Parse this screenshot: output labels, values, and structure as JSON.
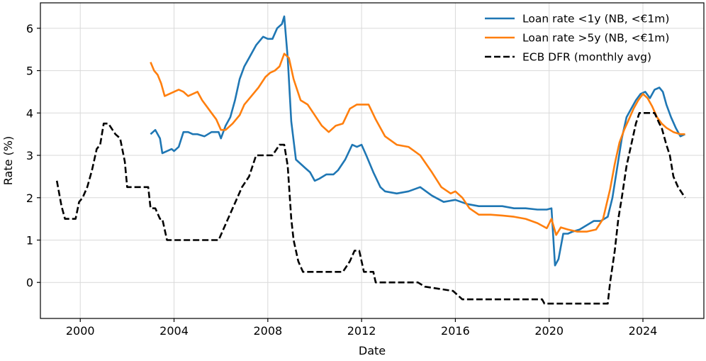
{
  "chart_data": {
    "type": "line",
    "title": "",
    "xlabel": "Date",
    "ylabel": "Rate (%)",
    "xlim": [
      1998.3,
      2026.6
    ],
    "ylim": [
      -0.85,
      6.6
    ],
    "x_ticks": [
      2000,
      2004,
      2008,
      2012,
      2016,
      2020,
      2024
    ],
    "x_tick_labels": [
      "2000",
      "2004",
      "2008",
      "2012",
      "2016",
      "2020",
      "2024"
    ],
    "y_ticks": [
      0,
      1,
      2,
      3,
      4,
      5,
      6
    ],
    "y_tick_labels": [
      "0",
      "1",
      "2",
      "3",
      "4",
      "5",
      "6"
    ],
    "grid": true,
    "legend_position": "upper right",
    "series": [
      {
        "name": "Loan rate <1y (NB, <€1m)",
        "color": "#1f77b4",
        "style": "solid",
        "x": [
          2003.0,
          2003.2,
          2003.4,
          2003.5,
          2003.7,
          2003.9,
          2004.0,
          2004.2,
          2004.4,
          2004.6,
          2004.8,
          2005.0,
          2005.3,
          2005.6,
          2005.9,
          2006.0,
          2006.2,
          2006.4,
          2006.6,
          2006.8,
          2007.0,
          2007.2,
          2007.5,
          2007.8,
          2008.0,
          2008.2,
          2008.4,
          2008.6,
          2008.7,
          2008.85,
          2009.0,
          2009.2,
          2009.4,
          2009.6,
          2009.8,
          2010.0,
          2010.2,
          2010.5,
          2010.8,
          2011.0,
          2011.3,
          2011.6,
          2011.8,
          2012.0,
          2012.2,
          2012.5,
          2012.8,
          2013.0,
          2013.5,
          2014.0,
          2014.5,
          2015.0,
          2015.5,
          2016.0,
          2016.5,
          2017.0,
          2017.5,
          2018.0,
          2018.5,
          2019.0,
          2019.5,
          2019.9,
          2020.1,
          2020.25,
          2020.4,
          2020.6,
          2020.8,
          2021.0,
          2021.3,
          2021.6,
          2021.9,
          2022.2,
          2022.5,
          2022.7,
          2022.9,
          2023.1,
          2023.3,
          2023.5,
          2023.7,
          2023.9,
          2024.1,
          2024.3,
          2024.5,
          2024.7,
          2024.85,
          2025.0,
          2025.2,
          2025.4,
          2025.6,
          2025.8
        ],
        "values": [
          3.5,
          3.6,
          3.4,
          3.05,
          3.1,
          3.15,
          3.1,
          3.2,
          3.55,
          3.55,
          3.5,
          3.5,
          3.45,
          3.55,
          3.55,
          3.4,
          3.7,
          3.9,
          4.3,
          4.8,
          5.1,
          5.3,
          5.6,
          5.8,
          5.75,
          5.75,
          6.0,
          6.1,
          6.28,
          5.3,
          3.8,
          2.9,
          2.8,
          2.7,
          2.6,
          2.4,
          2.45,
          2.55,
          2.55,
          2.65,
          2.9,
          3.25,
          3.2,
          3.25,
          3.0,
          2.6,
          2.25,
          2.15,
          2.1,
          2.15,
          2.25,
          2.05,
          1.9,
          1.95,
          1.85,
          1.8,
          1.8,
          1.8,
          1.75,
          1.75,
          1.72,
          1.72,
          1.75,
          0.4,
          0.55,
          1.15,
          1.15,
          1.2,
          1.25,
          1.35,
          1.45,
          1.45,
          1.55,
          2.0,
          2.7,
          3.4,
          3.9,
          4.1,
          4.3,
          4.45,
          4.5,
          4.35,
          4.55,
          4.6,
          4.5,
          4.2,
          3.9,
          3.65,
          3.45,
          3.5
        ]
      },
      {
        "name": "Loan rate >5y (NB, <€1m)",
        "color": "#ff7f0e",
        "style": "solid",
        "x": [
          2003.0,
          2003.15,
          2003.3,
          2003.45,
          2003.6,
          2003.8,
          2004.0,
          2004.2,
          2004.4,
          2004.6,
          2004.8,
          2005.0,
          2005.2,
          2005.4,
          2005.6,
          2005.8,
          2006.0,
          2006.2,
          2006.5,
          2006.8,
          2007.0,
          2007.3,
          2007.6,
          2007.9,
          2008.1,
          2008.3,
          2008.5,
          2008.7,
          2008.9,
          2009.1,
          2009.4,
          2009.7,
          2010.0,
          2010.3,
          2010.6,
          2010.9,
          2011.2,
          2011.5,
          2011.8,
          2012.0,
          2012.3,
          2012.6,
          2013.0,
          2013.5,
          2014.0,
          2014.5,
          2015.0,
          2015.4,
          2015.8,
          2016.0,
          2016.3,
          2016.6,
          2017.0,
          2017.5,
          2018.0,
          2018.5,
          2019.0,
          2019.5,
          2019.9,
          2020.1,
          2020.3,
          2020.5,
          2020.8,
          2021.2,
          2021.6,
          2022.0,
          2022.3,
          2022.6,
          2022.8,
          2023.0,
          2023.2,
          2023.4,
          2023.6,
          2023.8,
          2024.0,
          2024.2,
          2024.4,
          2024.6,
          2024.8,
          2025.0,
          2025.3,
          2025.6,
          2025.8
        ],
        "values": [
          5.2,
          5.0,
          4.9,
          4.7,
          4.4,
          4.45,
          4.5,
          4.55,
          4.5,
          4.4,
          4.45,
          4.5,
          4.3,
          4.15,
          4.0,
          3.85,
          3.6,
          3.6,
          3.75,
          3.95,
          4.2,
          4.4,
          4.6,
          4.85,
          4.95,
          5.0,
          5.1,
          5.4,
          5.3,
          4.8,
          4.3,
          4.2,
          3.95,
          3.7,
          3.55,
          3.7,
          3.75,
          4.1,
          4.2,
          4.2,
          4.2,
          3.85,
          3.45,
          3.25,
          3.2,
          3.0,
          2.6,
          2.25,
          2.1,
          2.15,
          2.0,
          1.75,
          1.6,
          1.6,
          1.58,
          1.55,
          1.5,
          1.4,
          1.28,
          1.5,
          1.12,
          1.3,
          1.25,
          1.2,
          1.2,
          1.25,
          1.5,
          2.2,
          2.8,
          3.3,
          3.6,
          3.85,
          4.1,
          4.3,
          4.45,
          4.35,
          4.15,
          3.9,
          3.75,
          3.65,
          3.55,
          3.5,
          3.5
        ]
      },
      {
        "name": "ECB DFR (monthly avg)",
        "color": "#000000",
        "style": "dashed",
        "x": [
          1999.0,
          1999.2,
          1999.35,
          1999.5,
          1999.8,
          1999.95,
          2000.1,
          2000.3,
          2000.5,
          2000.7,
          2000.85,
          2001.0,
          2001.2,
          2001.5,
          2001.7,
          2001.9,
          2002.0,
          2002.5,
          2002.9,
          2003.0,
          2003.2,
          2003.4,
          2003.5,
          2003.7,
          2005.9,
          2006.1,
          2006.3,
          2006.5,
          2006.7,
          2006.9,
          2007.2,
          2007.5,
          2008.2,
          2008.5,
          2008.7,
          2008.85,
          2009.0,
          2009.1,
          2009.3,
          2009.5,
          2011.2,
          2011.5,
          2011.7,
          2011.9,
          2012.0,
          2012.1,
          2012.5,
          2012.6,
          2014.4,
          2014.7,
          2015.9,
          2016.3,
          2019.7,
          2019.8,
          2022.5,
          2022.6,
          2022.8,
          2022.95,
          2023.1,
          2023.3,
          2023.5,
          2023.7,
          2023.85,
          2024.5,
          2024.7,
          2024.8,
          2025.0,
          2025.15,
          2025.3,
          2025.5,
          2025.8
        ],
        "values": [
          2.4,
          1.8,
          1.5,
          1.5,
          1.5,
          1.9,
          2.0,
          2.25,
          2.65,
          3.15,
          3.25,
          3.75,
          3.75,
          3.5,
          3.4,
          2.85,
          2.25,
          2.25,
          2.25,
          1.75,
          1.75,
          1.5,
          1.5,
          1.0,
          1.0,
          1.25,
          1.5,
          1.75,
          2.0,
          2.25,
          2.5,
          3.0,
          3.0,
          3.25,
          3.25,
          2.75,
          1.5,
          1.0,
          0.5,
          0.25,
          0.25,
          0.5,
          0.75,
          0.75,
          0.5,
          0.25,
          0.25,
          0.0,
          0.0,
          -0.1,
          -0.2,
          -0.4,
          -0.4,
          -0.5,
          -0.5,
          0.0,
          0.75,
          1.5,
          2.0,
          2.75,
          3.25,
          3.75,
          4.0,
          4.0,
          3.75,
          3.65,
          3.25,
          3.0,
          2.5,
          2.25,
          2.0
        ]
      }
    ]
  }
}
